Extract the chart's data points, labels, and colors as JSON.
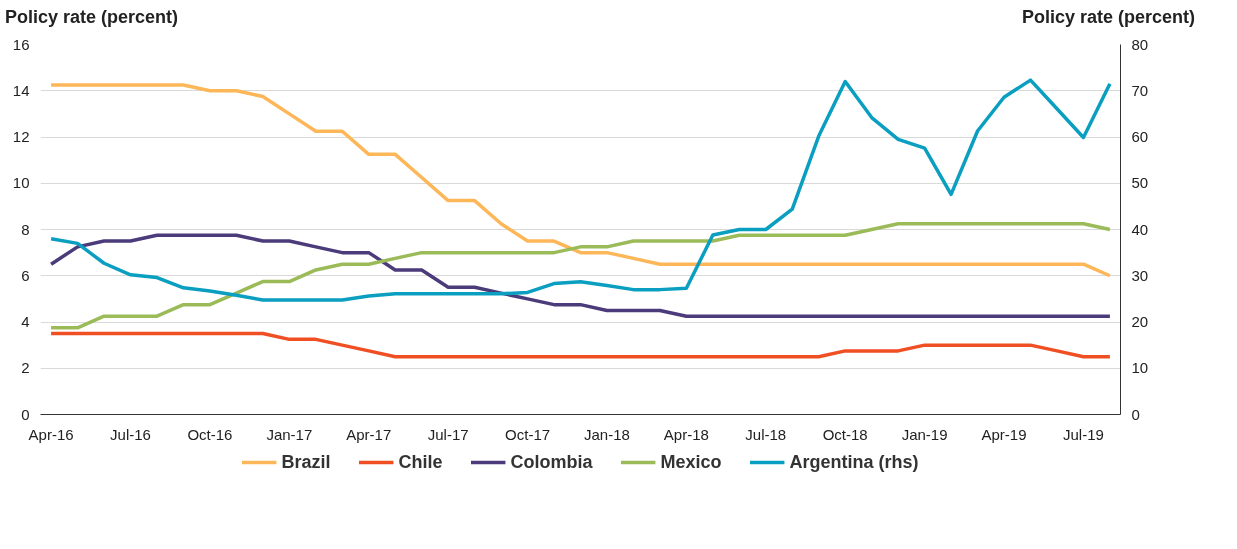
{
  "chart_data": {
    "type": "line",
    "ylabel": "Policy rate (percent)",
    "y2label": "Policy rate (percent)",
    "categories": [
      "Apr-16",
      null,
      null,
      "Jul-16",
      null,
      null,
      "Oct-16",
      null,
      null,
      "Jan-17",
      null,
      null,
      "Apr-17",
      null,
      null,
      "Jul-17",
      null,
      null,
      "Oct-17",
      null,
      null,
      "Jan-18",
      null,
      null,
      "Apr-18",
      null,
      null,
      "Jul-18",
      null,
      null,
      "Oct-18",
      null,
      null,
      "Jan-19",
      null,
      null,
      "Apr-19",
      null,
      null,
      "Jul-19",
      null
    ],
    "ylim": [
      0,
      16
    ],
    "yticks": [
      0,
      2,
      4,
      6,
      8,
      10,
      12,
      14,
      16
    ],
    "y2lim": [
      0,
      80
    ],
    "y2ticks": [
      0,
      10,
      20,
      30,
      40,
      50,
      60,
      70,
      80
    ],
    "grid": "y",
    "legend": "bottom",
    "line_style": "solid",
    "marker": "none",
    "series": [
      {
        "name": "Brazil",
        "color": "#fdb758",
        "values": [
          14.25,
          14.25,
          14.25,
          14.25,
          14.25,
          14.25,
          14.0,
          14.0,
          13.75,
          13.0,
          12.25,
          12.25,
          11.25,
          11.25,
          10.25,
          9.25,
          9.25,
          8.25,
          7.5,
          7.5,
          7.0,
          7.0,
          6.75,
          6.5,
          6.5,
          6.5,
          6.5,
          6.5,
          6.5,
          6.5,
          6.5,
          6.5,
          6.5,
          6.5,
          6.5,
          6.5,
          6.5,
          6.5,
          6.5,
          6.5,
          6.0
        ]
      },
      {
        "name": "Chile",
        "color": "#f04e23",
        "values": [
          3.5,
          3.5,
          3.5,
          3.5,
          3.5,
          3.5,
          3.5,
          3.5,
          3.5,
          3.25,
          3.25,
          3.0,
          2.75,
          2.5,
          2.5,
          2.5,
          2.5,
          2.5,
          2.5,
          2.5,
          2.5,
          2.5,
          2.5,
          2.5,
          2.5,
          2.5,
          2.5,
          2.5,
          2.5,
          2.5,
          2.75,
          2.75,
          2.75,
          3.0,
          3.0,
          3.0,
          3.0,
          3.0,
          2.75,
          2.5,
          2.5
        ]
      },
      {
        "name": "Colombia",
        "color": "#4b3b7b",
        "values": [
          6.5,
          7.25,
          7.5,
          7.5,
          7.75,
          7.75,
          7.75,
          7.75,
          7.5,
          7.5,
          7.25,
          7.0,
          7.0,
          6.25,
          6.25,
          5.5,
          5.5,
          5.25,
          5.0,
          4.75,
          4.75,
          4.5,
          4.5,
          4.5,
          4.25,
          4.25,
          4.25,
          4.25,
          4.25,
          4.25,
          4.25,
          4.25,
          4.25,
          4.25,
          4.25,
          4.25,
          4.25,
          4.25,
          4.25,
          4.25,
          4.25
        ]
      },
      {
        "name": "Mexico",
        "color": "#9bbb59",
        "values": [
          3.75,
          3.75,
          4.25,
          4.25,
          4.25,
          4.75,
          4.75,
          5.25,
          5.75,
          5.75,
          6.25,
          6.5,
          6.5,
          6.75,
          7.0,
          7.0,
          7.0,
          7.0,
          7.0,
          7.0,
          7.25,
          7.25,
          7.5,
          7.5,
          7.5,
          7.5,
          7.75,
          7.75,
          7.75,
          7.75,
          7.75,
          8.0,
          8.25,
          8.25,
          8.25,
          8.25,
          8.25,
          8.25,
          8.25,
          8.25,
          8.0
        ]
      },
      {
        "name": "Argentina (rhs)",
        "color": "#0a9fc1",
        "axis": "y2",
        "values": [
          38.0,
          37.0,
          32.7,
          30.2,
          29.6,
          27.4,
          26.7,
          25.8,
          24.75,
          24.75,
          24.75,
          24.75,
          25.6,
          26.1,
          26.1,
          26.1,
          26.1,
          26.1,
          26.4,
          28.3,
          28.7,
          27.9,
          27.0,
          27.0,
          27.3,
          38.8,
          40.0,
          40.0,
          44.4,
          60.2,
          72.0,
          64.2,
          59.5,
          57.6,
          47.6,
          61.3,
          68.6,
          72.3,
          66.1,
          59.9,
          71.5
        ]
      }
    ]
  }
}
